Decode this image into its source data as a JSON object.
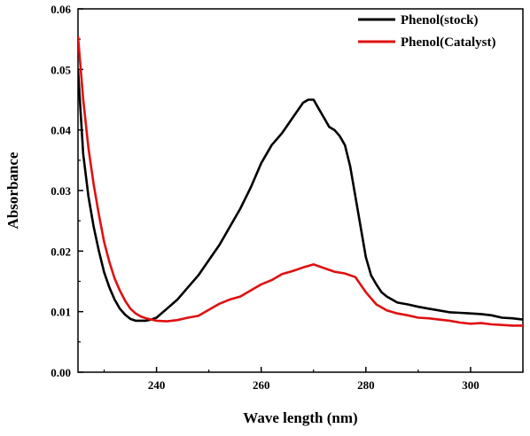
{
  "chart_data": {
    "type": "line",
    "title": "",
    "xlabel": "Wave length (nm)",
    "ylabel": "Absorbance",
    "xlim": [
      225,
      310
    ],
    "ylim": [
      0.0,
      0.06
    ],
    "xticks": [
      240,
      260,
      280,
      300
    ],
    "yticks": [
      "0.00",
      "0.01",
      "0.02",
      "0.03",
      "0.04",
      "0.05",
      "0.06"
    ],
    "grid": false,
    "legend_position": "top-right",
    "series": [
      {
        "name": "Phenol(stock)",
        "color": "#000000",
        "x": [
          225,
          226,
          227,
          228,
          229,
          230,
          231,
          232,
          233,
          234,
          235,
          236,
          237,
          238,
          239,
          240,
          242,
          244,
          246,
          248,
          250,
          252,
          254,
          256,
          258,
          260,
          262,
          264,
          266,
          268,
          269,
          270,
          271,
          272,
          273,
          274,
          275,
          276,
          277,
          278,
          279,
          280,
          281,
          282,
          283,
          284,
          286,
          288,
          290,
          292,
          294,
          296,
          298,
          300,
          302,
          304,
          306,
          308,
          310
        ],
        "y": [
          0.05,
          0.036,
          0.029,
          0.024,
          0.02,
          0.0165,
          0.014,
          0.012,
          0.0105,
          0.0095,
          0.0088,
          0.0085,
          0.0085,
          0.0085,
          0.0087,
          0.009,
          0.0105,
          0.012,
          0.014,
          0.016,
          0.0185,
          0.021,
          0.024,
          0.027,
          0.0305,
          0.0345,
          0.0375,
          0.0395,
          0.042,
          0.0445,
          0.045,
          0.045,
          0.0435,
          0.042,
          0.0405,
          0.04,
          0.039,
          0.0375,
          0.034,
          0.029,
          0.024,
          0.019,
          0.016,
          0.0145,
          0.0132,
          0.0125,
          0.0115,
          0.0112,
          0.0108,
          0.0105,
          0.0102,
          0.0099,
          0.0098,
          0.0097,
          0.0096,
          0.0094,
          0.009,
          0.0089,
          0.0087
        ]
      },
      {
        "name": "Phenol(Catalyst)",
        "color": "#e01010",
        "x": [
          225,
          226,
          227,
          228,
          229,
          230,
          231,
          232,
          233,
          234,
          235,
          236,
          237,
          238,
          239,
          240,
          242,
          244,
          246,
          248,
          250,
          252,
          254,
          256,
          258,
          260,
          262,
          264,
          266,
          268,
          270,
          272,
          274,
          276,
          278,
          280,
          282,
          284,
          286,
          288,
          290,
          292,
          294,
          296,
          298,
          300,
          302,
          304,
          306,
          308,
          310
        ],
        "y": [
          0.0555,
          0.045,
          0.037,
          0.031,
          0.026,
          0.0215,
          0.0182,
          0.0155,
          0.0135,
          0.0118,
          0.0105,
          0.0097,
          0.0092,
          0.0089,
          0.0087,
          0.0085,
          0.0084,
          0.0086,
          0.009,
          0.0093,
          0.0103,
          0.0113,
          0.012,
          0.0125,
          0.0135,
          0.0145,
          0.0152,
          0.0162,
          0.0167,
          0.0173,
          0.0178,
          0.0172,
          0.0166,
          0.0163,
          0.0157,
          0.0132,
          0.0112,
          0.0102,
          0.0097,
          0.0094,
          0.009,
          0.0089,
          0.0087,
          0.0085,
          0.0082,
          0.008,
          0.0081,
          0.0079,
          0.0078,
          0.0077,
          0.0077
        ]
      }
    ]
  }
}
